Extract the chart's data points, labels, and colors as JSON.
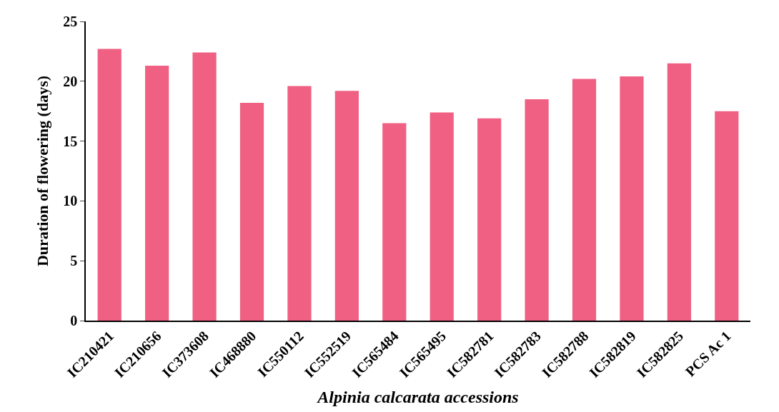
{
  "chart_data": {
    "type": "bar",
    "xlabel": "Alpinia calcarata accessions",
    "ylabel": "Duration of flowering (days)",
    "categories": [
      "IC210421",
      "IC210656",
      "IC373608",
      "IC468880",
      "IC550112",
      "IC552519",
      "IC565484",
      "IC565495",
      "IC582781",
      "IC582783",
      "IC582788",
      "IC582819",
      "IC582825",
      "PCS Ac 1"
    ],
    "values": [
      22.7,
      21.3,
      22.4,
      18.2,
      19.6,
      19.2,
      16.5,
      17.4,
      16.9,
      18.5,
      20.2,
      20.4,
      21.5,
      17.5
    ],
    "color": "#f06082",
    "ylim": [
      0,
      25
    ],
    "yticks": [
      0,
      5,
      10,
      15,
      20,
      25
    ]
  }
}
